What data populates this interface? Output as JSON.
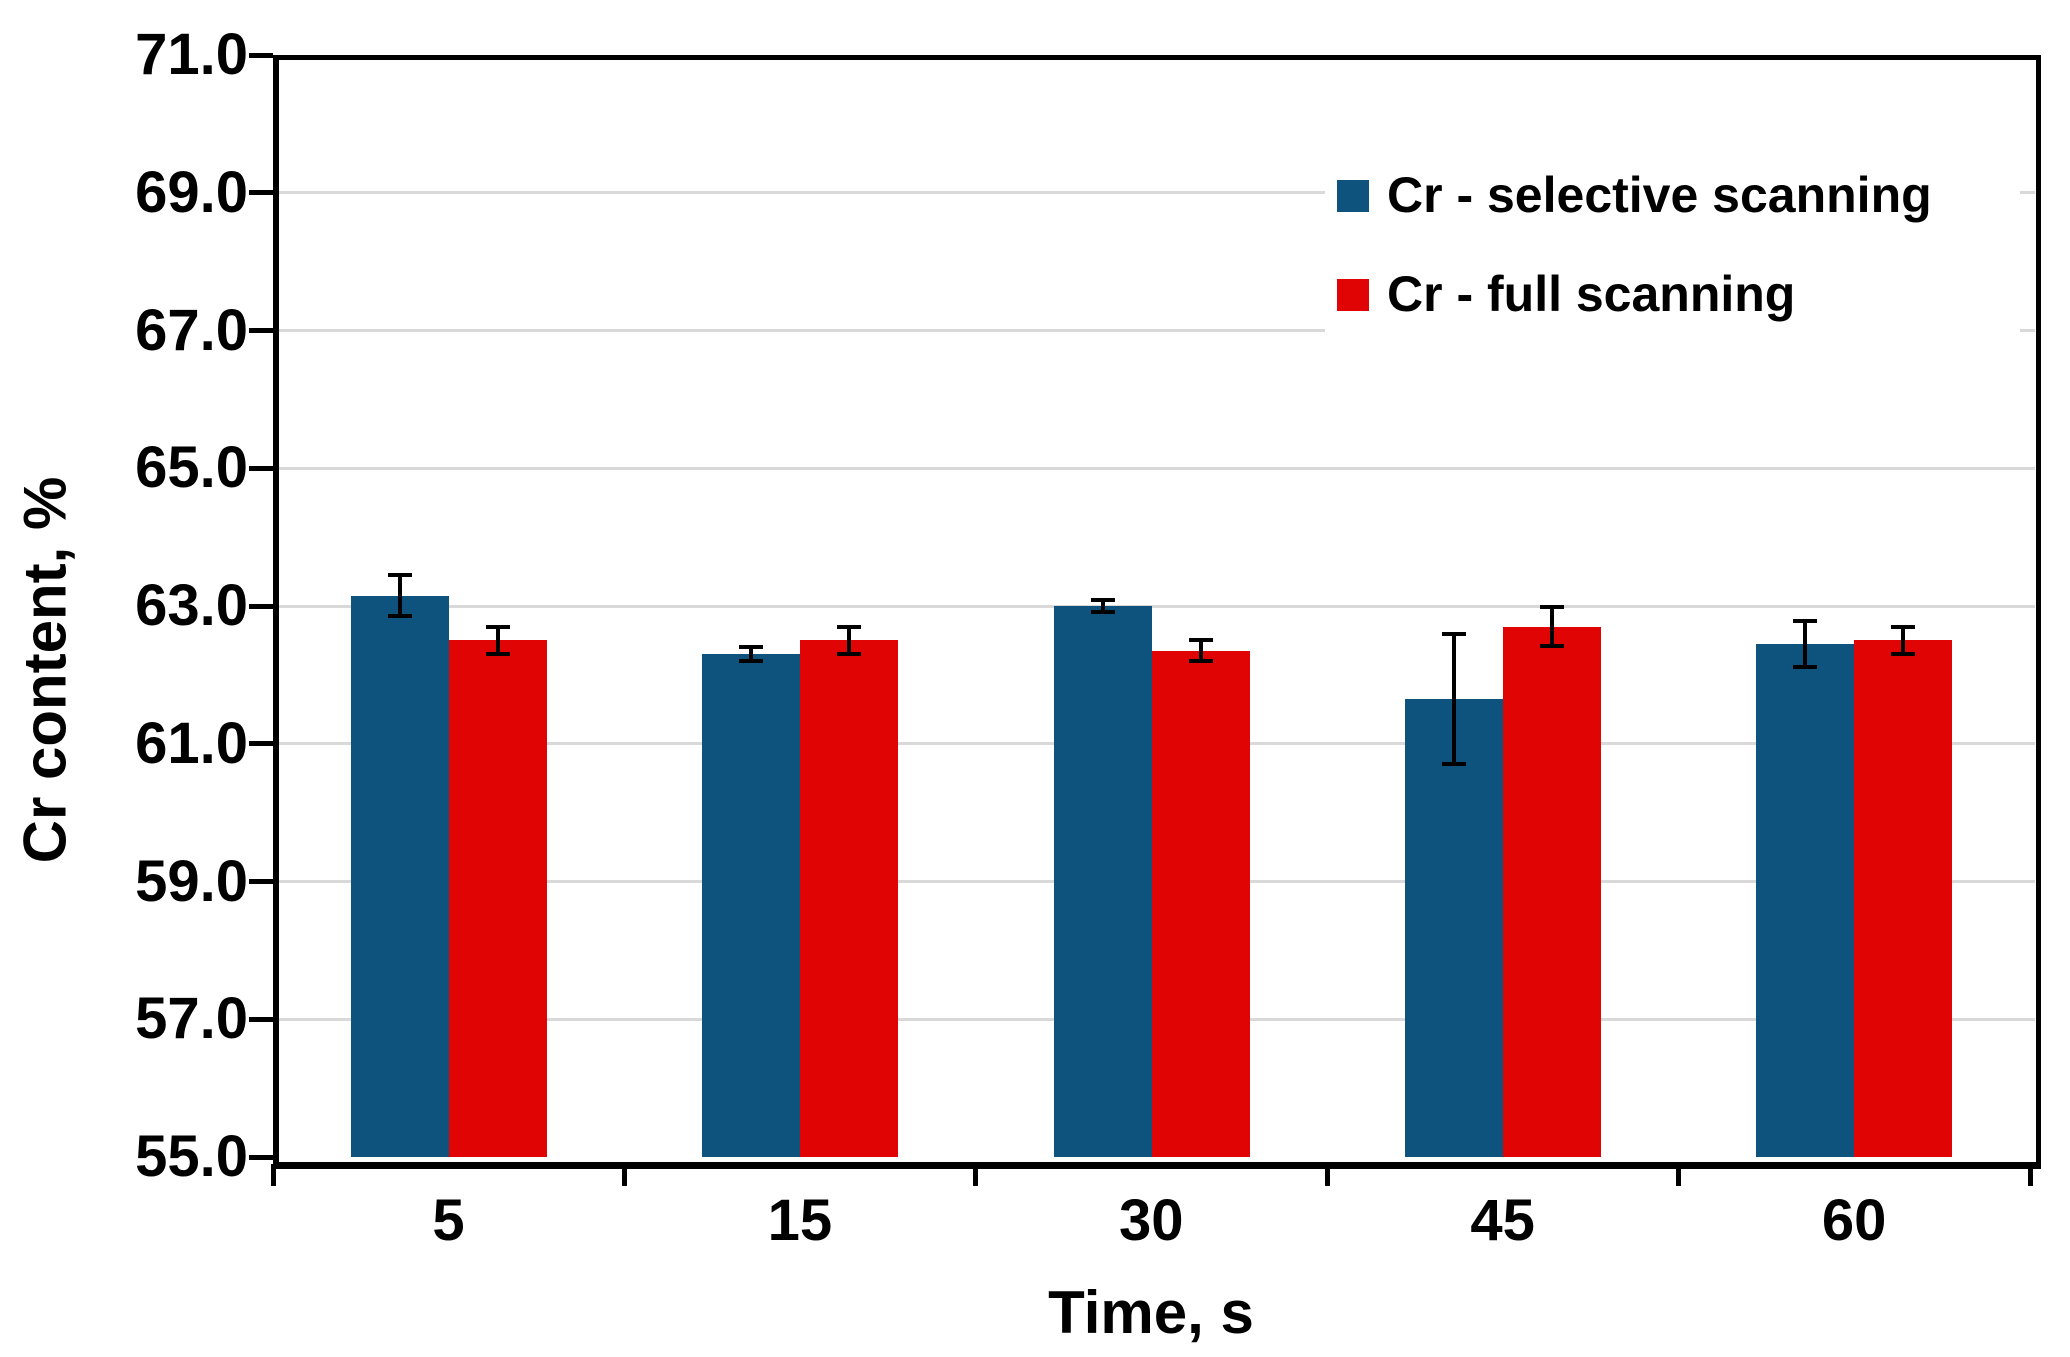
{
  "chart_data": {
    "type": "bar",
    "title": "",
    "xlabel": "Time, s",
    "ylabel": "Cr content, %",
    "categories": [
      "5",
      "15",
      "30",
      "45",
      "60"
    ],
    "series": [
      {
        "name": "Cr - selective scanning",
        "color": "#0E527E",
        "values": [
          63.15,
          62.3,
          63.0,
          61.65,
          62.45
        ],
        "errors": [
          0.3,
          0.1,
          0.08,
          0.95,
          0.33
        ]
      },
      {
        "name": "Cr - full scanning",
        "color": "#E00404",
        "values": [
          62.5,
          62.5,
          62.35,
          62.7,
          62.5
        ],
        "errors": [
          0.2,
          0.2,
          0.15,
          0.28,
          0.2
        ]
      }
    ],
    "ylim": [
      55.0,
      71.0
    ],
    "ytick_step": 2.0,
    "yticks": [
      55,
      57,
      59,
      61,
      63,
      65,
      67,
      69,
      71
    ],
    "ytick_labels": [
      "55.0",
      "57.0",
      "59.0",
      "61.0",
      "63.0",
      "65.0",
      "67.0",
      "69.0",
      "71.0"
    ],
    "grid": true,
    "gridline_color": "#d9d9d9",
    "legend_position": "top-right",
    "error_bar_color": "#000000",
    "axis_color": "#000000"
  }
}
